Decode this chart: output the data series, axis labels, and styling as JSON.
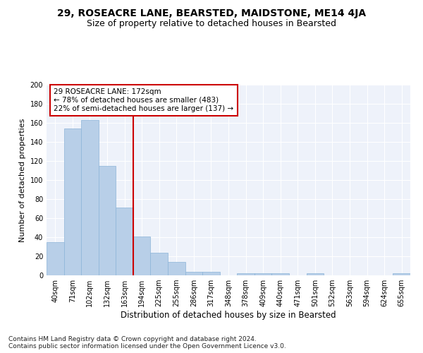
{
  "title1": "29, ROSEACRE LANE, BEARSTED, MAIDSTONE, ME14 4JA",
  "title2": "Size of property relative to detached houses in Bearsted",
  "xlabel": "Distribution of detached houses by size in Bearsted",
  "ylabel": "Number of detached properties",
  "footnote": "Contains HM Land Registry data © Crown copyright and database right 2024.\nContains public sector information licensed under the Open Government Licence v3.0.",
  "bar_labels": [
    "40sqm",
    "71sqm",
    "102sqm",
    "132sqm",
    "163sqm",
    "194sqm",
    "225sqm",
    "255sqm",
    "286sqm",
    "317sqm",
    "348sqm",
    "378sqm",
    "409sqm",
    "440sqm",
    "471sqm",
    "501sqm",
    "532sqm",
    "563sqm",
    "594sqm",
    "624sqm",
    "655sqm"
  ],
  "bar_values": [
    35,
    154,
    163,
    115,
    71,
    41,
    24,
    14,
    4,
    4,
    0,
    2,
    2,
    2,
    0,
    2,
    0,
    0,
    0,
    0,
    2
  ],
  "bar_color": "#b8cfe8",
  "bar_edgecolor": "#8cb4d8",
  "vline_index": 4,
  "vline_color": "#cc0000",
  "annotation_line1": "29 ROSEACRE LANE: 172sqm",
  "annotation_line2": "← 78% of detached houses are smaller (483)",
  "annotation_line3": "22% of semi-detached houses are larger (137) →",
  "annotation_box_edgecolor": "#cc0000",
  "annotation_box_facecolor": "#ffffff",
  "ylim": [
    0,
    200
  ],
  "yticks": [
    0,
    20,
    40,
    60,
    80,
    100,
    120,
    140,
    160,
    180,
    200
  ],
  "background_color": "#eef2fa",
  "grid_color": "#ffffff",
  "title1_fontsize": 10,
  "title2_fontsize": 9,
  "xlabel_fontsize": 8.5,
  "ylabel_fontsize": 8,
  "tick_fontsize": 7,
  "annotation_fontsize": 7.5,
  "footnote_fontsize": 6.5
}
